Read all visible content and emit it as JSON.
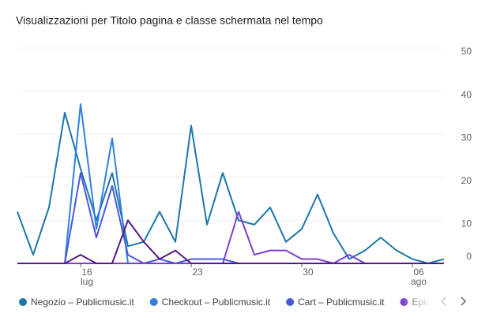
{
  "chart_data": {
    "type": "line",
    "title": "Visualizzazioni per Titolo pagina e classe schermata nel tempo",
    "categories": [
      null,
      null,
      null,
      null,
      "16",
      null,
      null,
      null,
      null,
      null,
      null,
      "23",
      null,
      null,
      null,
      null,
      null,
      null,
      "30",
      null,
      null,
      null,
      null,
      null,
      null,
      "06",
      null,
      null
    ],
    "category_months": [
      null,
      null,
      null,
      null,
      "lug",
      null,
      null,
      null,
      null,
      null,
      null,
      null,
      null,
      null,
      null,
      null,
      null,
      null,
      null,
      null,
      null,
      null,
      null,
      null,
      null,
      "ago",
      null,
      null
    ],
    "series": [
      {
        "name": "Negozio – Publicmusic.it",
        "color": "#1a77a8",
        "values": [
          12,
          2,
          13,
          35,
          22,
          10,
          21,
          4,
          5,
          12,
          5,
          32,
          9,
          21,
          10,
          9,
          13,
          5,
          8,
          16,
          7,
          1,
          3,
          6,
          3,
          1,
          0,
          1
        ]
      },
      {
        "name": "Checkout – Publicmusic.it",
        "color": "#2f80e0",
        "values": [
          0,
          0,
          0,
          0,
          37,
          8,
          29,
          0,
          0,
          0,
          0,
          0,
          0,
          0,
          0,
          0,
          0,
          0,
          0,
          0,
          0,
          0,
          0,
          0,
          0,
          0,
          0,
          0
        ]
      },
      {
        "name": "Cart – Publicmusic.it",
        "color": "#4a58dc",
        "values": [
          0,
          0,
          0,
          0,
          21,
          6,
          18,
          2,
          0,
          1,
          0,
          1,
          1,
          1,
          0,
          0,
          0,
          0,
          0,
          0,
          0,
          0,
          0,
          0,
          0,
          0,
          0,
          0
        ]
      },
      {
        "name": "Epic Po",
        "color": "#7a3fd0",
        "values": [
          0,
          0,
          0,
          0,
          0,
          0,
          0,
          0,
          0,
          0,
          0,
          0,
          0,
          0,
          12,
          2,
          3,
          3,
          1,
          1,
          0,
          2,
          0,
          0,
          0,
          0,
          0,
          0
        ]
      },
      {
        "color": "#561a86",
        "values": [
          0,
          0,
          0,
          0,
          2,
          0,
          0,
          10,
          5,
          1,
          3,
          0,
          0,
          0,
          0,
          0,
          0,
          0,
          0,
          0,
          0,
          0,
          0,
          0,
          0,
          0,
          0,
          0
        ]
      }
    ],
    "ylim": [
      0,
      50
    ],
    "yticks": [
      0,
      10,
      20,
      30,
      40,
      50
    ],
    "grid": true
  }
}
